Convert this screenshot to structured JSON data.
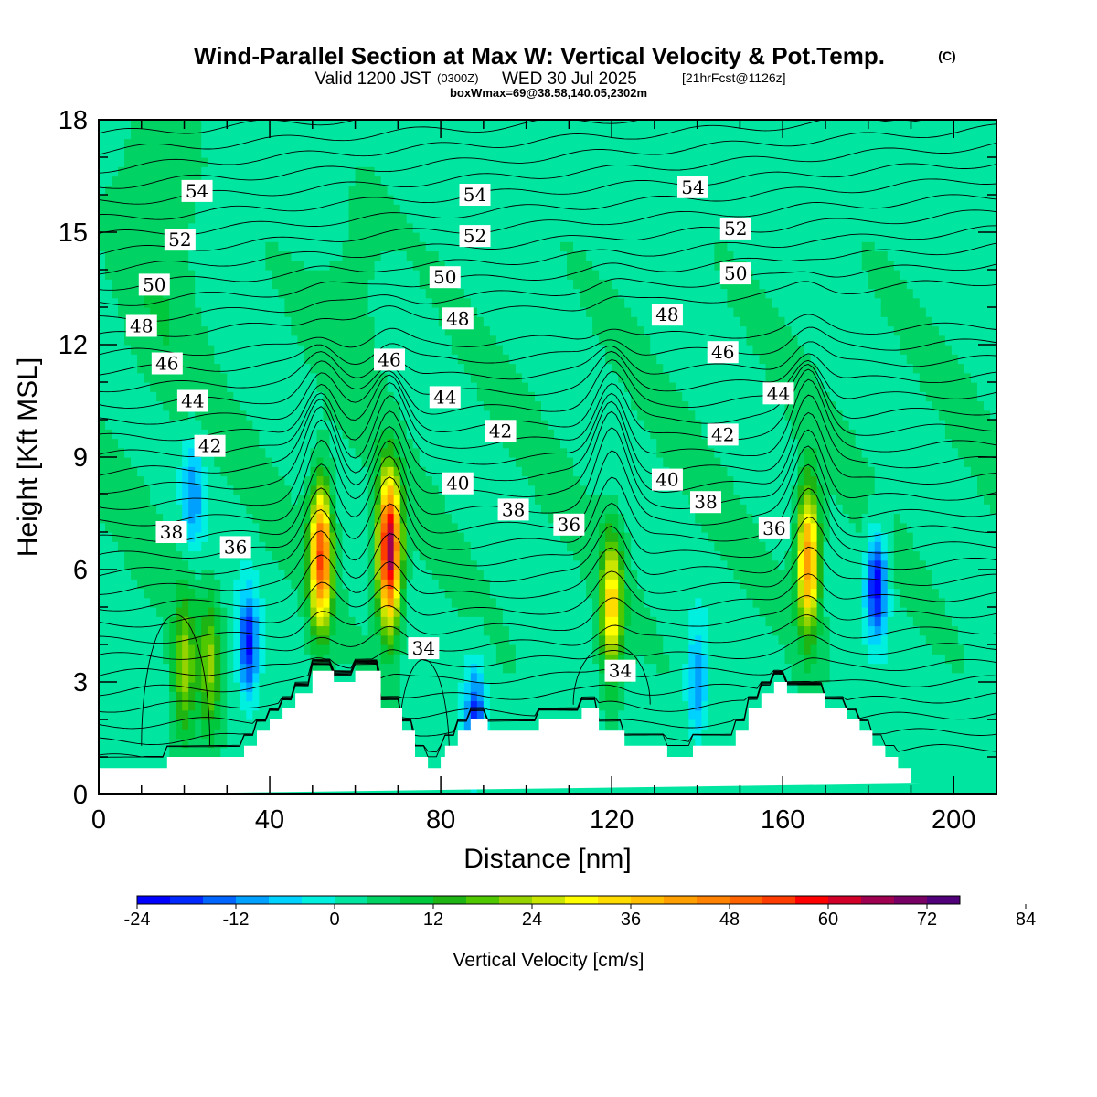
{
  "title": {
    "main": "Wind-Parallel Section at Max W: Vertical Velocity & Pot.Temp.",
    "copyright": "(C)",
    "valid_prefix": "Valid 1200 JST",
    "valid_utc": "(0300Z)",
    "valid_date": "WED 30 Jul 2025",
    "forecast": "[21hrFcst@1126z]",
    "boxwmax": "boxWmax=69@38.58,140.05,2302m"
  },
  "chart_data": {
    "type": "heatmap",
    "xlabel": "Distance [nm]",
    "ylabel": "Height [Kft MSL]",
    "xlim": [
      0,
      210
    ],
    "ylim": [
      0,
      18
    ],
    "x_ticks": [
      0,
      40,
      80,
      120,
      160,
      200
    ],
    "y_ticks": [
      0,
      3,
      6,
      9,
      12,
      15,
      18
    ],
    "grid": false,
    "fill_variable": "Vertical Velocity [cm/s]",
    "contour_variable": "Potential temperature",
    "colorbar": {
      "label": "Vertical Velocity [cm/s]",
      "placement": "bottom",
      "min": -24,
      "step": 4,
      "tick_labels": [
        "-24",
        "-12",
        "0",
        "12",
        "24",
        "36",
        "48",
        "60",
        "72",
        "84"
      ],
      "colors": [
        "#0000ff",
        "#0028ff",
        "#0064ff",
        "#00a0ff",
        "#00d2ff",
        "#00f0e0",
        "#00e6a0",
        "#00d264",
        "#00c83c",
        "#1eb414",
        "#50c800",
        "#96d200",
        "#c8e600",
        "#ffff00",
        "#ffdc00",
        "#ffbe00",
        "#ffa000",
        "#ff8200",
        "#ff6400",
        "#ff3c00",
        "#ff0000",
        "#d20028",
        "#a00050",
        "#780064",
        "#500078"
      ]
    },
    "updraft_cores": [
      {
        "x": 20,
        "z": 3.4,
        "w": 22
      },
      {
        "x": 26,
        "z": 3.4,
        "w": 20
      },
      {
        "x": 52,
        "z": 6.4,
        "w": 52
      },
      {
        "x": 68,
        "z": 6.5,
        "w": 69
      },
      {
        "x": 120,
        "z": 5.0,
        "w": 34
      },
      {
        "x": 166,
        "z": 6.3,
        "w": 46
      }
    ],
    "downdraft_cores": [
      {
        "x": 35,
        "z": 4.0,
        "w": -20
      },
      {
        "x": 22,
        "z": 8.0,
        "w": -10
      },
      {
        "x": 88,
        "z": 2.0,
        "w": -18
      },
      {
        "x": 140,
        "z": 3.0,
        "w": -12
      },
      {
        "x": 182,
        "z": 5.6,
        "w": -22
      }
    ],
    "terrain": {
      "x": [
        0,
        16,
        16,
        34,
        34,
        37,
        37,
        40,
        40,
        43,
        43,
        46,
        46,
        50,
        50,
        55,
        55,
        60,
        60,
        66,
        66,
        71,
        71,
        74,
        74,
        77,
        77,
        78,
        78,
        80,
        80,
        81,
        81,
        84,
        84,
        87,
        87,
        91,
        91,
        103,
        103,
        113,
        113,
        115,
        115,
        117,
        117,
        123,
        123,
        133,
        133,
        139,
        139,
        149,
        149,
        152,
        152,
        155,
        155,
        158,
        158,
        161,
        161,
        170,
        170,
        175,
        175,
        178,
        178,
        181,
        181,
        184,
        184,
        187,
        187,
        190,
        190,
        193,
        193,
        197,
        197,
        210
      ],
      "z": [
        0.7,
        0.7,
        1.0,
        1.0,
        1.3,
        1.3,
        1.7,
        1.7,
        2.0,
        2.0,
        2.3,
        2.3,
        2.7,
        2.7,
        3.3,
        3.3,
        3.0,
        3.0,
        3.3,
        3.3,
        2.3,
        2.3,
        1.7,
        1.7,
        1.0,
        1.0,
        0.7,
        0.7,
        0.7,
        0.7,
        1.0,
        1.0,
        1.3,
        1.3,
        1.7,
        1.7,
        2.0,
        2.0,
        1.7,
        1.7,
        2.0,
        2.0,
        2.3,
        2.3,
        2.3,
        2.3,
        1.7,
        1.7,
        1.3,
        1.3,
        1.0,
        1.0,
        1.3,
        1.3,
        1.7,
        1.7,
        2.3,
        2.3,
        2.7,
        2.7,
        3.0,
        3.0,
        2.7,
        2.7,
        2.3,
        2.3,
        2.0,
        2.0,
        1.7,
        1.7,
        1.3,
        1.3,
        1.0,
        1.0,
        0.7,
        0.7,
        0.3,
        0.3,
        0.3,
        0.3,
        0.3
      ]
    },
    "theta_contours": {
      "levels_labeled": [
        34,
        36,
        38,
        40,
        42,
        44,
        46,
        48,
        50,
        52,
        54
      ],
      "labels": [
        {
          "text": "54",
          "x": 23,
          "z": 16.1
        },
        {
          "text": "54",
          "x": 88,
          "z": 16.0
        },
        {
          "text": "54",
          "x": 139,
          "z": 16.2
        },
        {
          "text": "52",
          "x": 19,
          "z": 14.8
        },
        {
          "text": "52",
          "x": 88,
          "z": 14.9
        },
        {
          "text": "52",
          "x": 149,
          "z": 15.1
        },
        {
          "text": "50",
          "x": 13,
          "z": 13.6
        },
        {
          "text": "50",
          "x": 81,
          "z": 13.8
        },
        {
          "text": "50",
          "x": 149,
          "z": 13.9
        },
        {
          "text": "48",
          "x": 10,
          "z": 12.5
        },
        {
          "text": "48",
          "x": 84,
          "z": 12.7
        },
        {
          "text": "48",
          "x": 133,
          "z": 12.8
        },
        {
          "text": "46",
          "x": 16,
          "z": 11.5
        },
        {
          "text": "46",
          "x": 68,
          "z": 11.6
        },
        {
          "text": "46",
          "x": 146,
          "z": 11.8
        },
        {
          "text": "44",
          "x": 22,
          "z": 10.5
        },
        {
          "text": "44",
          "x": 81,
          "z": 10.6
        },
        {
          "text": "44",
          "x": 159,
          "z": 10.7
        },
        {
          "text": "42",
          "x": 26,
          "z": 9.3
        },
        {
          "text": "42",
          "x": 94,
          "z": 9.7
        },
        {
          "text": "42",
          "x": 146,
          "z": 9.6
        },
        {
          "text": "40",
          "x": 84,
          "z": 8.3
        },
        {
          "text": "40",
          "x": 133,
          "z": 8.4
        },
        {
          "text": "38",
          "x": 17,
          "z": 7.0
        },
        {
          "text": "38",
          "x": 97,
          "z": 7.6
        },
        {
          "text": "38",
          "x": 142,
          "z": 7.8
        },
        {
          "text": "36",
          "x": 32,
          "z": 6.6
        },
        {
          "text": "36",
          "x": 110,
          "z": 7.2
        },
        {
          "text": "36",
          "x": 158,
          "z": 7.1
        },
        {
          "text": "34",
          "x": 76,
          "z": 3.9
        },
        {
          "text": "34",
          "x": 122,
          "z": 3.3
        }
      ]
    }
  }
}
